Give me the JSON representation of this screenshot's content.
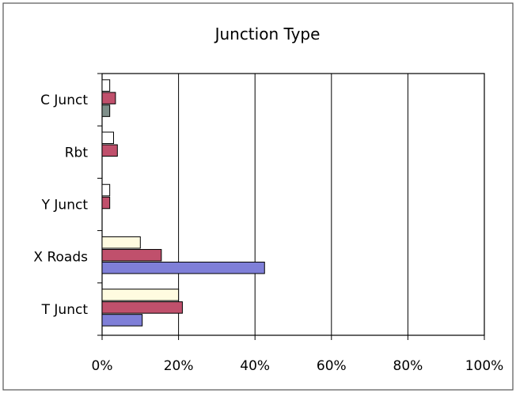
{
  "chart_data": {
    "type": "bar",
    "orientation": "horizontal",
    "title": "Junction Type",
    "categories": [
      "C Junct",
      "Rbt",
      "Y Junct",
      "X Roads",
      "T Junct"
    ],
    "xlim": [
      0,
      100
    ],
    "x_ticks": [
      "0%",
      "20%",
      "40%",
      "60%",
      "80%",
      "100%"
    ],
    "grid": true,
    "legend": "none",
    "series": [
      {
        "color": "#ffffff",
        "values": [
          2,
          3,
          2,
          10,
          20
        ]
      },
      {
        "color": "#c0506c",
        "values": [
          3.5,
          4,
          2,
          15.5,
          21
        ]
      },
      {
        "color": "#7f8f8a",
        "values": [
          2,
          0,
          0,
          0,
          0
        ]
      },
      {
        "color": "#7f7fd8",
        "values": [
          0,
          0,
          0,
          42.5,
          10.5
        ]
      }
    ],
    "series_colors_by_category": {
      "X Roads": [
        "#fffbe0",
        "#c0506c",
        null,
        "#7f7fd8"
      ],
      "T Junct": [
        "#fffbe0",
        "#c0506c",
        null,
        "#7f7fd8"
      ]
    }
  }
}
